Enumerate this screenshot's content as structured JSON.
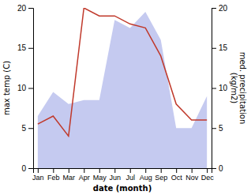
{
  "chart_data": {
    "type": "line",
    "xlabel": "date (month)",
    "ylabel": "max temp (C)",
    "y2label": "med. precipitation\n(kg/m2)",
    "categories": [
      "Jan",
      "Feb",
      "Mar",
      "Apr",
      "May",
      "Jun",
      "Jul",
      "Aug",
      "Sep",
      "Oct",
      "Nov",
      "Dec"
    ],
    "series": [
      {
        "type": "area",
        "axis": "y2",
        "color": "#c5caf0",
        "values": [
          6.5,
          9.5,
          8.0,
          8.5,
          8.5,
          18.5,
          17.5,
          19.5,
          16.0,
          5.0,
          5.0,
          9.0
        ]
      },
      {
        "type": "line",
        "color": "#c0392b",
        "values": [
          5.5,
          6.5,
          4.0,
          20.0,
          19.0,
          19.0,
          18.0,
          17.5,
          14.0,
          8.0,
          6.0,
          6.0
        ]
      }
    ],
    "ylim": [
      0,
      20
    ],
    "yticks": [
      0,
      5,
      10,
      15,
      20
    ],
    "y2lim": [
      0,
      20
    ],
    "y2ticks": [
      0,
      5,
      10,
      15,
      20
    ]
  }
}
